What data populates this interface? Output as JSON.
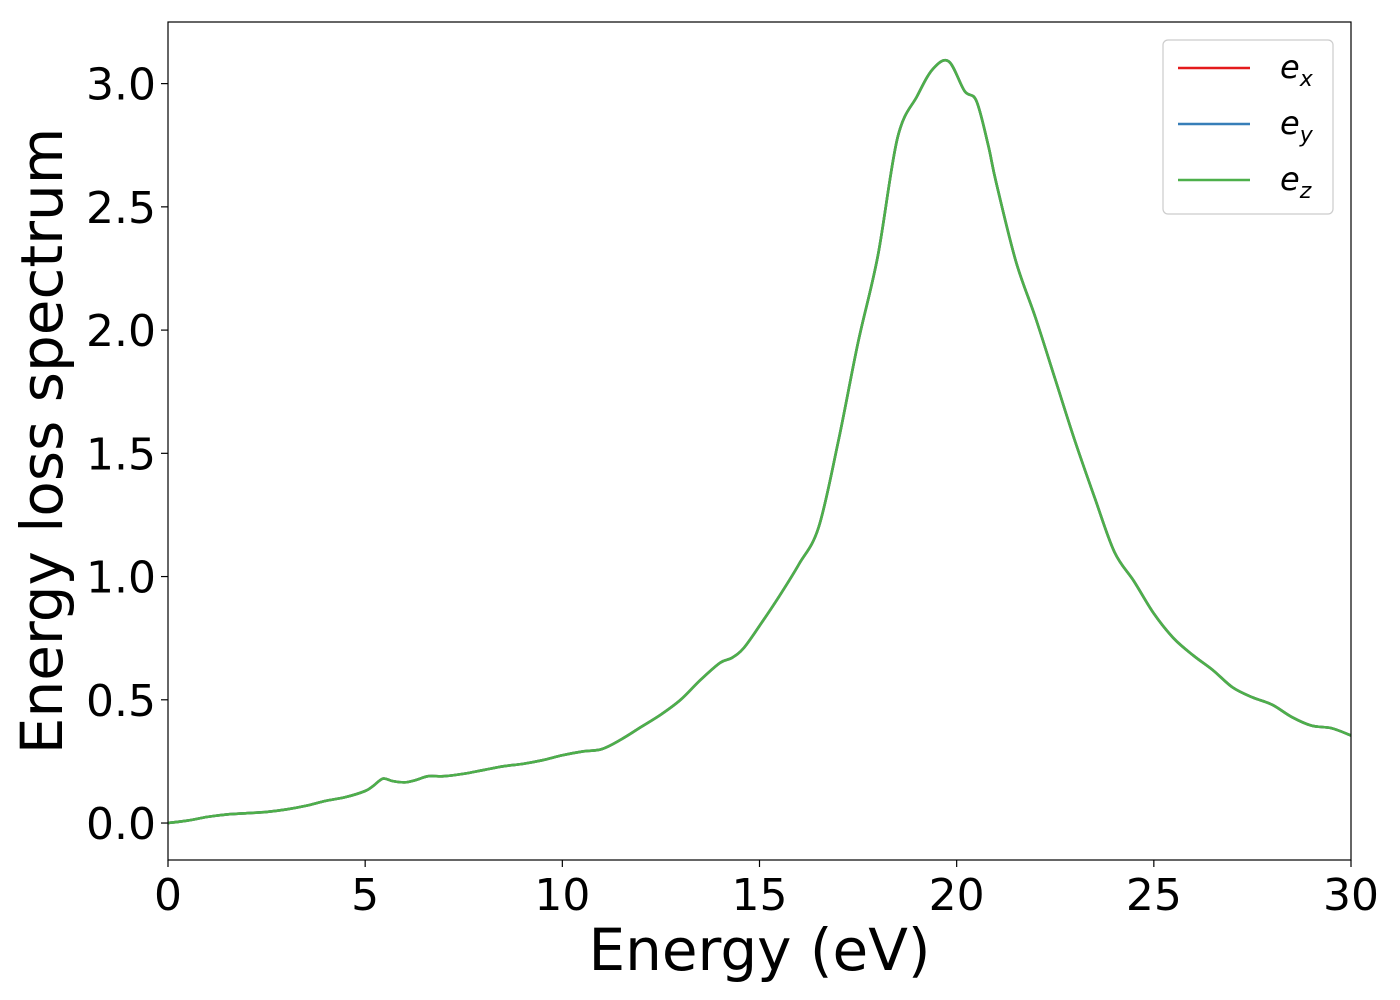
{
  "chart_data": {
    "type": "line",
    "title": "",
    "xlabel": "Energy (eV)",
    "ylabel": "Energy loss spectrum",
    "xlim": [
      0,
      30
    ],
    "ylim": [
      -0.15,
      3.25
    ],
    "xticks": [
      0,
      5,
      10,
      15,
      20,
      25,
      30
    ],
    "xtick_labels": [
      "0",
      "5",
      "10",
      "15",
      "20",
      "25",
      "30"
    ],
    "yticks": [
      0.0,
      0.5,
      1.0,
      1.5,
      2.0,
      2.5,
      3.0
    ],
    "ytick_labels": [
      "0.0",
      "0.5",
      "1.0",
      "1.5",
      "2.0",
      "2.5",
      "3.0"
    ],
    "grid": false,
    "legend_position": "top-right",
    "x": [
      0,
      0.5,
      1,
      1.5,
      2,
      2.5,
      3,
      3.5,
      4,
      4.5,
      5,
      5.2,
      5.45,
      5.7,
      6,
      6.3,
      6.6,
      7,
      7.5,
      8,
      8.5,
      9,
      9.5,
      10,
      10.5,
      11,
      11.5,
      12,
      12.5,
      13,
      13.5,
      14,
      14.3,
      14.6,
      15,
      15.5,
      16,
      16.5,
      17,
      17.5,
      18,
      18.5,
      19,
      19.4,
      19.8,
      20.2,
      20.5,
      20.8,
      21,
      21.5,
      22,
      22.5,
      23,
      23.5,
      24,
      24.5,
      25,
      25.5,
      26,
      26.5,
      27,
      27.5,
      28,
      28.5,
      29,
      29.5,
      30
    ],
    "series": [
      {
        "name": "e_x",
        "color": "#e41a1c",
        "values": [
          0.0,
          0.01,
          0.025,
          0.035,
          0.04,
          0.045,
          0.055,
          0.07,
          0.09,
          0.105,
          0.13,
          0.15,
          0.18,
          0.17,
          0.165,
          0.175,
          0.19,
          0.19,
          0.2,
          0.215,
          0.23,
          0.24,
          0.255,
          0.275,
          0.29,
          0.3,
          0.34,
          0.39,
          0.44,
          0.5,
          0.58,
          0.65,
          0.67,
          0.71,
          0.8,
          0.92,
          1.05,
          1.2,
          1.55,
          1.95,
          2.3,
          2.78,
          2.95,
          3.06,
          3.09,
          2.97,
          2.93,
          2.75,
          2.6,
          2.28,
          2.05,
          1.8,
          1.55,
          1.32,
          1.1,
          0.98,
          0.85,
          0.75,
          0.68,
          0.62,
          0.55,
          0.51,
          0.48,
          0.43,
          0.395,
          0.385,
          0.355
        ]
      },
      {
        "name": "e_y",
        "color": "#377eb8",
        "values": [
          0.0,
          0.01,
          0.025,
          0.035,
          0.04,
          0.045,
          0.055,
          0.07,
          0.09,
          0.105,
          0.13,
          0.15,
          0.18,
          0.17,
          0.165,
          0.175,
          0.19,
          0.19,
          0.2,
          0.215,
          0.23,
          0.24,
          0.255,
          0.275,
          0.29,
          0.3,
          0.34,
          0.39,
          0.44,
          0.5,
          0.58,
          0.65,
          0.67,
          0.71,
          0.8,
          0.92,
          1.05,
          1.2,
          1.55,
          1.95,
          2.3,
          2.78,
          2.95,
          3.06,
          3.09,
          2.97,
          2.93,
          2.75,
          2.6,
          2.28,
          2.05,
          1.8,
          1.55,
          1.32,
          1.1,
          0.98,
          0.85,
          0.75,
          0.68,
          0.62,
          0.55,
          0.51,
          0.48,
          0.43,
          0.395,
          0.385,
          0.355
        ]
      },
      {
        "name": "e_z",
        "color": "#4daf4a",
        "values": [
          0.0,
          0.01,
          0.025,
          0.035,
          0.04,
          0.045,
          0.055,
          0.07,
          0.09,
          0.105,
          0.13,
          0.15,
          0.18,
          0.17,
          0.165,
          0.175,
          0.19,
          0.19,
          0.2,
          0.215,
          0.23,
          0.24,
          0.255,
          0.275,
          0.29,
          0.3,
          0.34,
          0.39,
          0.44,
          0.5,
          0.58,
          0.65,
          0.67,
          0.71,
          0.8,
          0.92,
          1.05,
          1.2,
          1.55,
          1.95,
          2.3,
          2.78,
          2.95,
          3.06,
          3.09,
          2.97,
          2.93,
          2.75,
          2.6,
          2.28,
          2.05,
          1.8,
          1.55,
          1.32,
          1.1,
          0.98,
          0.85,
          0.75,
          0.68,
          0.62,
          0.55,
          0.51,
          0.48,
          0.43,
          0.395,
          0.385,
          0.355
        ]
      }
    ],
    "legend": [
      {
        "base": "e",
        "sub": "x",
        "color": "#e41a1c"
      },
      {
        "base": "e",
        "sub": "y",
        "color": "#377eb8"
      },
      {
        "base": "e",
        "sub": "z",
        "color": "#4daf4a"
      }
    ]
  }
}
